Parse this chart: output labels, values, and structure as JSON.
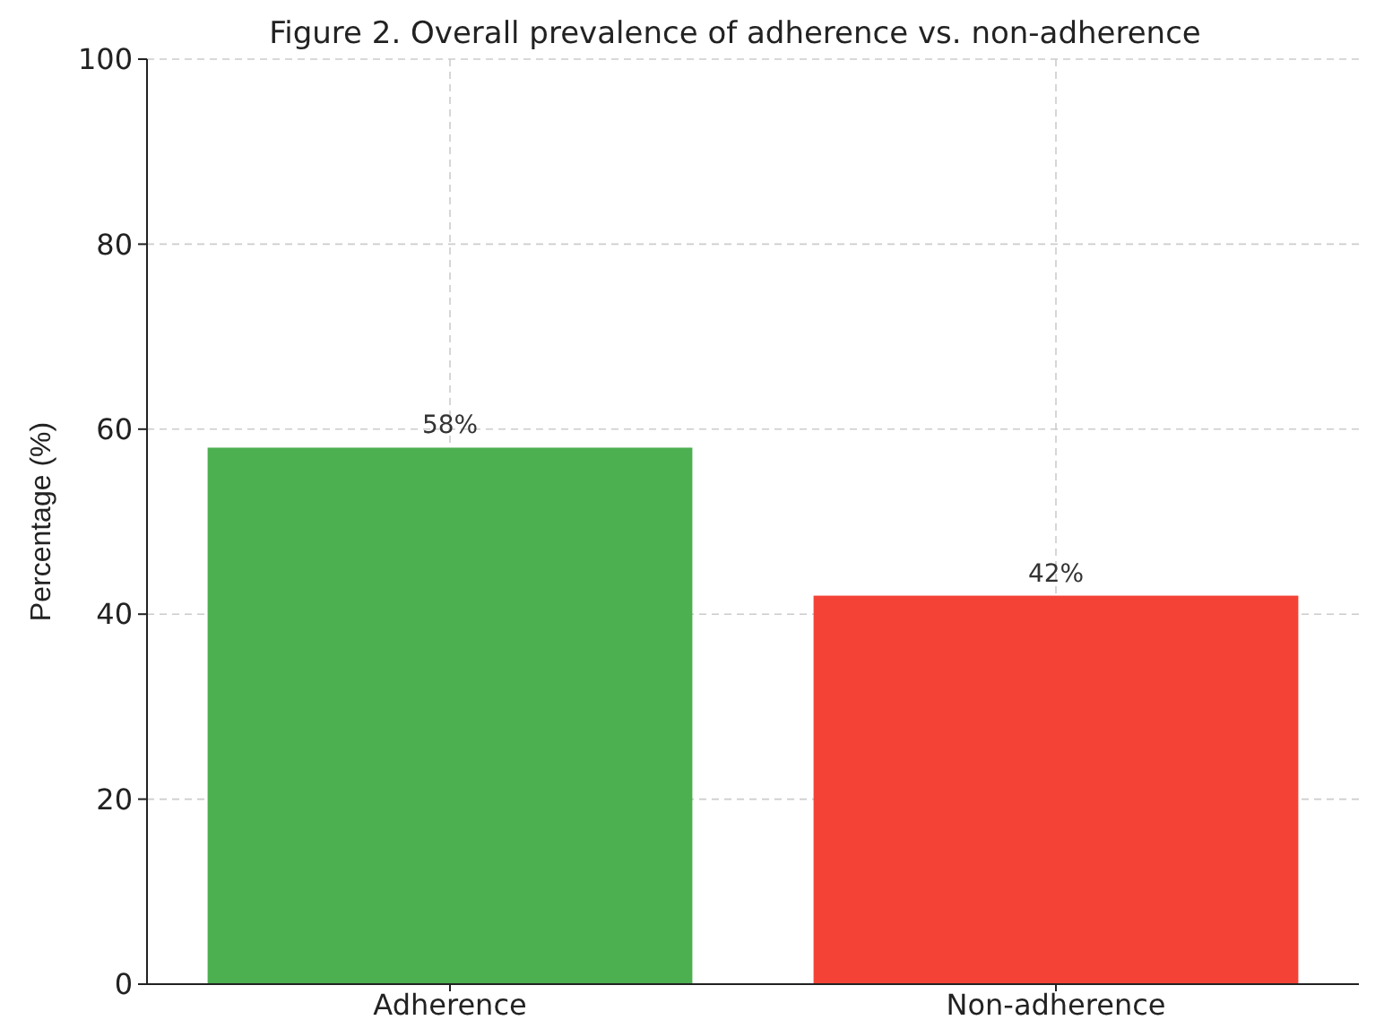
{
  "chart_data": {
    "type": "bar",
    "title": "Figure 2. Overall prevalence of adherence vs. non-adherence",
    "ylabel": "Percentage (%)",
    "categories": [
      "Adherence",
      "Non-adherence"
    ],
    "values": [
      58,
      42
    ],
    "colors": [
      "#4caf50",
      "#f44336"
    ],
    "value_labels": [
      "58%",
      "42%"
    ],
    "ylim": [
      0,
      100
    ],
    "yticks": [
      0,
      20,
      40,
      60,
      80,
      100
    ],
    "grid": true
  }
}
